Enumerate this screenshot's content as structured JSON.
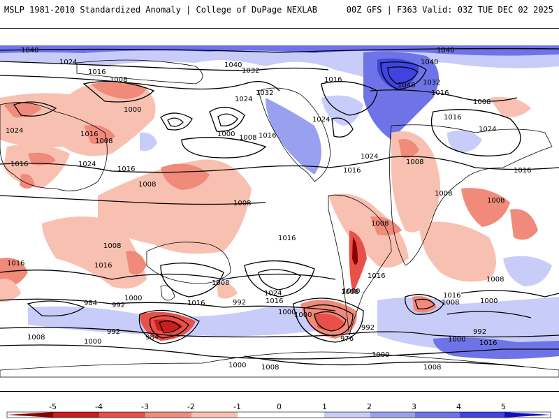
{
  "header": {
    "left_title": "MSLP 1981-2010 Standardized Anomaly | College of DuPage NEXLAB",
    "right_title": "00Z GFS | F363 Valid: 03Z TUE DEC 02 2025"
  },
  "colors": {
    "neg5": "#8b0000",
    "neg4": "#c81e1e",
    "neg3": "#e8504a",
    "neg2": "#f08a7a",
    "neg1": "#f8c0b0",
    "neutral": "#ffffff",
    "pos1": "#c8ccf8",
    "pos2": "#9aa0f0",
    "pos3": "#6e74e8",
    "pos4": "#3f44e0",
    "pos5": "#1010c8",
    "coast": "#000000"
  },
  "colorbar": {
    "ticks": [
      "-5",
      "-4",
      "-3",
      "-2",
      "-1",
      "0",
      "1",
      "2",
      "3",
      "4",
      "5"
    ]
  },
  "isobar_labels": [
    {
      "text": "1040",
      "name": "iso-1040-a"
    },
    {
      "text": "1024",
      "name": "iso-1024-a"
    },
    {
      "text": "1016",
      "name": "iso-1016-a"
    },
    {
      "text": "1008",
      "name": "iso-1008-a"
    },
    {
      "text": "1000",
      "name": "iso-1000-a"
    },
    {
      "text": "1016",
      "name": "iso-1016-b"
    },
    {
      "text": "1024",
      "name": "iso-1024-b"
    },
    {
      "text": "1008",
      "name": "iso-1008-b"
    },
    {
      "text": "1016",
      "name": "iso-1016-c"
    },
    {
      "text": "1024",
      "name": "iso-1024-c"
    },
    {
      "text": "1000",
      "name": "iso-1000-b"
    },
    {
      "text": "1008",
      "name": "iso-1008-c"
    },
    {
      "text": "1040",
      "name": "iso-1040-b"
    },
    {
      "text": "1032",
      "name": "iso-1032-a"
    },
    {
      "text": "1024",
      "name": "iso-1024-d"
    },
    {
      "text": "1032",
      "name": "iso-1032-b"
    },
    {
      "text": "1016",
      "name": "iso-1016-d"
    },
    {
      "text": "1016",
      "name": "iso-1016-e"
    },
    {
      "text": "1024",
      "name": "iso-1024-e"
    },
    {
      "text": "1048",
      "name": "iso-1048"
    },
    {
      "text": "1040",
      "name": "iso-1040-c"
    },
    {
      "text": "1032",
      "name": "iso-1032-c"
    },
    {
      "text": "1016",
      "name": "iso-1016-f"
    },
    {
      "text": "1040",
      "name": "iso-1040-d"
    },
    {
      "text": "1024",
      "name": "iso-1024-f"
    },
    {
      "text": "1016",
      "name": "iso-1016-g"
    },
    {
      "text": "1008",
      "name": "iso-1008-d"
    },
    {
      "text": "1016",
      "name": "iso-1016-h"
    },
    {
      "text": "1008",
      "name": "iso-1008-e"
    },
    {
      "text": "1024",
      "name": "iso-1024-g"
    },
    {
      "text": "1008",
      "name": "iso-1008-f"
    },
    {
      "text": "1016",
      "name": "iso-1016-i"
    },
    {
      "text": "1008",
      "name": "iso-1008-g"
    },
    {
      "text": "1008",
      "name": "iso-1008-h"
    },
    {
      "text": "1008",
      "name": "iso-1008-i"
    },
    {
      "text": "1016",
      "name": "iso-1016-j"
    },
    {
      "text": "1016",
      "name": "iso-1016-k"
    },
    {
      "text": "1016",
      "name": "iso-1016-l"
    },
    {
      "text": "1008",
      "name": "iso-1008-j"
    },
    {
      "text": "1016",
      "name": "iso-1016-m"
    },
    {
      "text": "1008",
      "name": "iso-1008-k"
    },
    {
      "text": "1016",
      "name": "iso-1016-n"
    },
    {
      "text": "1000",
      "name": "iso-1000-c"
    },
    {
      "text": "992",
      "name": "iso-992-a"
    },
    {
      "text": "984",
      "name": "iso-984-a"
    },
    {
      "text": "1000",
      "name": "iso-1000-d"
    },
    {
      "text": "1016",
      "name": "iso-1016-o"
    },
    {
      "text": "992",
      "name": "iso-992-b"
    },
    {
      "text": "1024",
      "name": "iso-1024-h"
    },
    {
      "text": "1016",
      "name": "iso-1016-p"
    },
    {
      "text": "1000",
      "name": "iso-1000-e"
    },
    {
      "text": "1008",
      "name": "iso-1008-l"
    },
    {
      "text": "992",
      "name": "iso-992-c"
    },
    {
      "text": "992",
      "name": "iso-992-d"
    },
    {
      "text": "976",
      "name": "iso-976"
    },
    {
      "text": "1008",
      "name": "iso-1008-m"
    },
    {
      "text": "1000",
      "name": "iso-1000-f"
    },
    {
      "text": "984",
      "name": "iso-984-b"
    },
    {
      "text": "1008",
      "name": "iso-1008-n"
    },
    {
      "text": "1000",
      "name": "iso-1000-g"
    },
    {
      "text": "1000",
      "name": "iso-1000-h"
    },
    {
      "text": "1008",
      "name": "iso-1008-o"
    },
    {
      "text": "1016",
      "name": "iso-1016-q"
    },
    {
      "text": "1008",
      "name": "iso-1008-p"
    },
    {
      "text": "1000",
      "name": "iso-1000-i"
    },
    {
      "text": "992",
      "name": "iso-992-e"
    },
    {
      "text": "1000",
      "name": "iso-1000-j"
    },
    {
      "text": "1016",
      "name": "iso-1016-r"
    },
    {
      "text": "1000",
      "name": "iso-1000-k"
    },
    {
      "text": "1008",
      "name": "iso-1008-q"
    },
    {
      "text": "1008",
      "name": "iso-1008-r"
    }
  ]
}
